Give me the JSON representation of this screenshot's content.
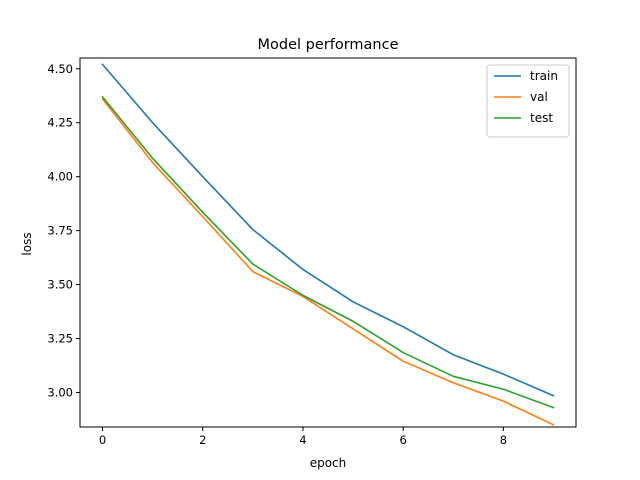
{
  "chart_data": {
    "type": "line",
    "title": "Model performance",
    "xlabel": "epoch",
    "ylabel": "loss",
    "x": [
      0,
      1,
      2,
      3,
      4,
      5,
      6,
      7,
      8,
      9
    ],
    "xlim": [
      -0.45,
      9.45
    ],
    "ylim": [
      2.84,
      4.55
    ],
    "xticks": [
      0,
      2,
      4,
      6,
      8
    ],
    "xtick_labels": [
      "0",
      "2",
      "4",
      "6",
      "8"
    ],
    "yticks": [
      3.0,
      3.25,
      3.5,
      3.75,
      4.0,
      4.25,
      4.5
    ],
    "ytick_labels": [
      "3.00",
      "3.25",
      "3.50",
      "3.75",
      "4.00",
      "4.25",
      "4.50"
    ],
    "grid": false,
    "legend_position": "top-right",
    "series": [
      {
        "name": "train",
        "color": "#1f77b4",
        "values": [
          4.52,
          4.25,
          4.0,
          3.755,
          3.57,
          3.42,
          3.305,
          3.175,
          3.085,
          2.985
        ]
      },
      {
        "name": "val",
        "color": "#ff7f0e",
        "values": [
          4.36,
          4.065,
          3.815,
          3.56,
          3.445,
          3.295,
          3.145,
          3.045,
          2.96,
          2.85
        ]
      },
      {
        "name": "test",
        "color": "#2ca02c",
        "values": [
          4.37,
          4.085,
          3.835,
          3.595,
          3.45,
          3.33,
          3.185,
          3.075,
          3.015,
          2.93
        ]
      }
    ]
  }
}
